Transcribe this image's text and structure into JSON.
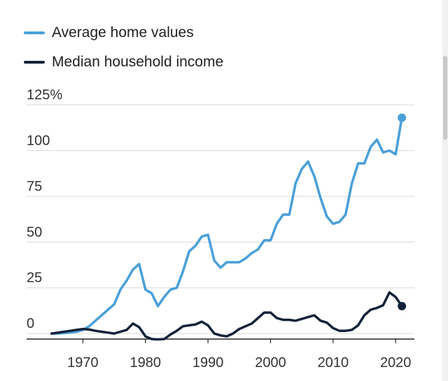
{
  "chart_data": {
    "type": "line",
    "title": "",
    "xlabel": "",
    "ylabel": "",
    "xlim": [
      1961,
      2023
    ],
    "ylim": [
      -3,
      125
    ],
    "x_ticks": [
      1970,
      1980,
      1990,
      2000,
      2010,
      2020
    ],
    "x_tick_labels": [
      "1970",
      "1980",
      "1990",
      "2000",
      "2010",
      "2020"
    ],
    "y_ticks": [
      0,
      25,
      50,
      75,
      100,
      125
    ],
    "y_tick_labels": [
      "0",
      "25",
      "50",
      "75",
      "100",
      "125%"
    ],
    "grid": "horizontal",
    "legend_position": "top-left",
    "series": [
      {
        "name": "Average home values",
        "color": "#4a9fd8",
        "end_marker": true,
        "x": [
          1965,
          1966,
          1967,
          1968,
          1969,
          1970,
          1971,
          1972,
          1973,
          1974,
          1975,
          1976,
          1977,
          1978,
          1979,
          1980,
          1981,
          1982,
          1983,
          1984,
          1985,
          1986,
          1987,
          1988,
          1989,
          1990,
          1991,
          1992,
          1993,
          1994,
          1995,
          1996,
          1997,
          1998,
          1999,
          2000,
          2001,
          2002,
          2003,
          2004,
          2005,
          2006,
          2007,
          2008,
          2009,
          2010,
          2011,
          2012,
          2013,
          2014,
          2015,
          2016,
          2017,
          2018,
          2019,
          2020,
          2021
        ],
        "y": [
          0,
          0,
          0.3,
          0.6,
          1,
          2,
          4,
          7,
          10,
          13,
          16,
          24,
          29,
          35,
          38,
          24,
          22,
          15,
          20,
          24,
          25,
          34,
          45,
          48,
          53,
          54,
          40,
          36,
          39,
          39,
          39,
          41,
          44,
          46,
          51,
          51,
          60,
          65,
          65,
          82,
          90,
          94,
          86,
          74,
          64,
          60,
          61,
          65,
          82,
          93,
          93,
          102,
          106,
          99,
          100,
          98,
          118
        ]
      },
      {
        "name": "Median household income",
        "color": "#13223a",
        "end_marker": true,
        "x": [
          1965,
          1966,
          1967,
          1968,
          1969,
          1970,
          1971,
          1972,
          1973,
          1974,
          1975,
          1976,
          1977,
          1978,
          1979,
          1980,
          1981,
          1982,
          1983,
          1984,
          1985,
          1986,
          1987,
          1988,
          1989,
          1990,
          1991,
          1992,
          1993,
          1994,
          1995,
          1996,
          1997,
          1998,
          1999,
          2000,
          2001,
          2002,
          2003,
          2004,
          2005,
          2006,
          2007,
          2008,
          2009,
          2010,
          2011,
          2012,
          2013,
          2014,
          2015,
          2016,
          2017,
          2018,
          2019,
          2020,
          2021
        ],
        "y": [
          0,
          0.5,
          1,
          1.5,
          2,
          2.5,
          2.2,
          1.5,
          1,
          0.5,
          0,
          1,
          2,
          5.5,
          3.5,
          -1.5,
          -3,
          -3.2,
          -3,
          -0.5,
          1.5,
          4,
          4.5,
          5,
          6.5,
          4.5,
          0,
          -1,
          -1.5,
          0,
          2.5,
          4,
          5.5,
          8.5,
          11.5,
          11.5,
          8.5,
          7.5,
          7.5,
          7,
          8,
          9,
          10,
          7,
          6,
          3,
          1.5,
          1.5,
          2,
          4.5,
          10,
          13,
          14,
          15.5,
          22.5,
          20,
          15
        ]
      }
    ]
  },
  "legend": {
    "items": [
      {
        "label": "Average home values",
        "color": "#4a9fd8"
      },
      {
        "label": "Median household income",
        "color": "#13223a"
      }
    ]
  }
}
